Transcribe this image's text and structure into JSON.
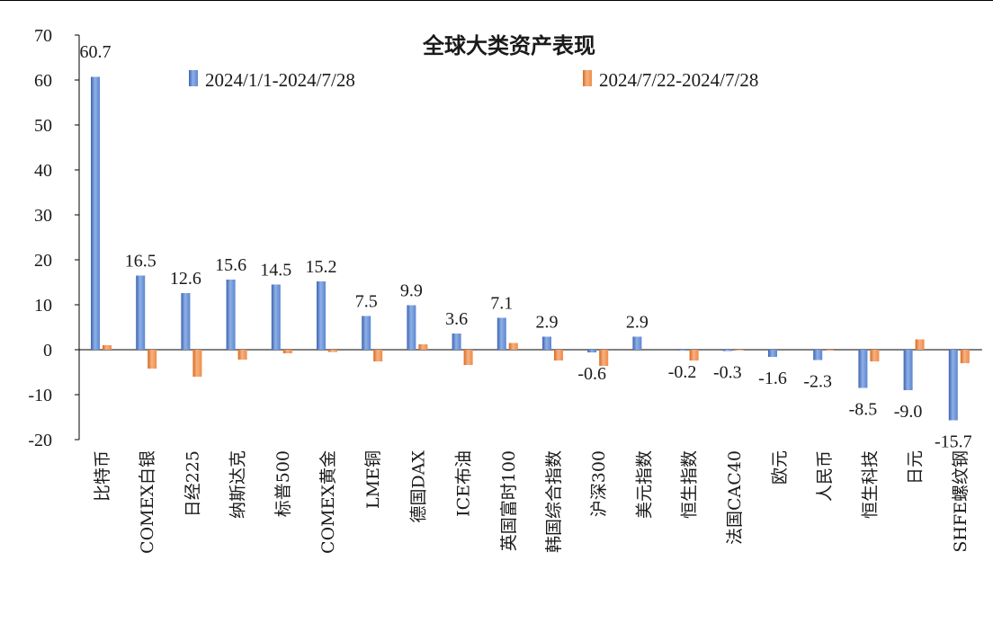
{
  "chart_data": {
    "type": "bar",
    "title": "全球大类资产表现",
    "categories": [
      "比特币",
      "COMEX白银",
      "日经225",
      "纳斯达克",
      "标普500",
      "COMEX黄金",
      "LME铜",
      "德国DAX",
      "ICE布油",
      "英国富时100",
      "韩国综合指数",
      "沪深300",
      "美元指数",
      "恒生指数",
      "法国CAC40",
      "欧元",
      "人民币",
      "恒生科技",
      "日元",
      "SHFE螺纹钢"
    ],
    "series": [
      {
        "name": "2024/1/1-2024/7/28",
        "color": "#4472C4",
        "values": [
          60.7,
          16.5,
          12.6,
          15.6,
          14.5,
          15.2,
          7.5,
          9.9,
          3.6,
          7.1,
          2.9,
          -0.6,
          2.9,
          -0.2,
          -0.3,
          -1.6,
          -2.3,
          -8.5,
          -9.0,
          -15.7
        ],
        "labels": [
          "60.7",
          "16.5",
          "12.6",
          "15.6",
          "14.5",
          "15.2",
          "7.5",
          "9.9",
          "3.6",
          "7.1",
          "2.9",
          "-0.6",
          "2.9",
          "-0.2",
          "-0.3",
          "-1.6",
          "-2.3",
          "-8.5",
          "-9.0",
          "-15.7"
        ]
      },
      {
        "name": "2024/7/22-2024/7/28",
        "color": "#ED7D31",
        "values": [
          1.0,
          -4.2,
          -6.0,
          -2.2,
          -0.8,
          -0.5,
          -2.6,
          1.2,
          -3.4,
          1.5,
          -2.4,
          -3.6,
          0.0,
          -2.4,
          -0.1,
          0.0,
          -0.2,
          -2.6,
          2.3,
          -3.0
        ]
      }
    ],
    "ylim": [
      -20,
      70
    ],
    "yticks": [
      "70",
      "60",
      "50",
      "40",
      "30",
      "20",
      "10",
      "0",
      "-10",
      "-20"
    ],
    "legend_position": "top",
    "grid": false
  }
}
